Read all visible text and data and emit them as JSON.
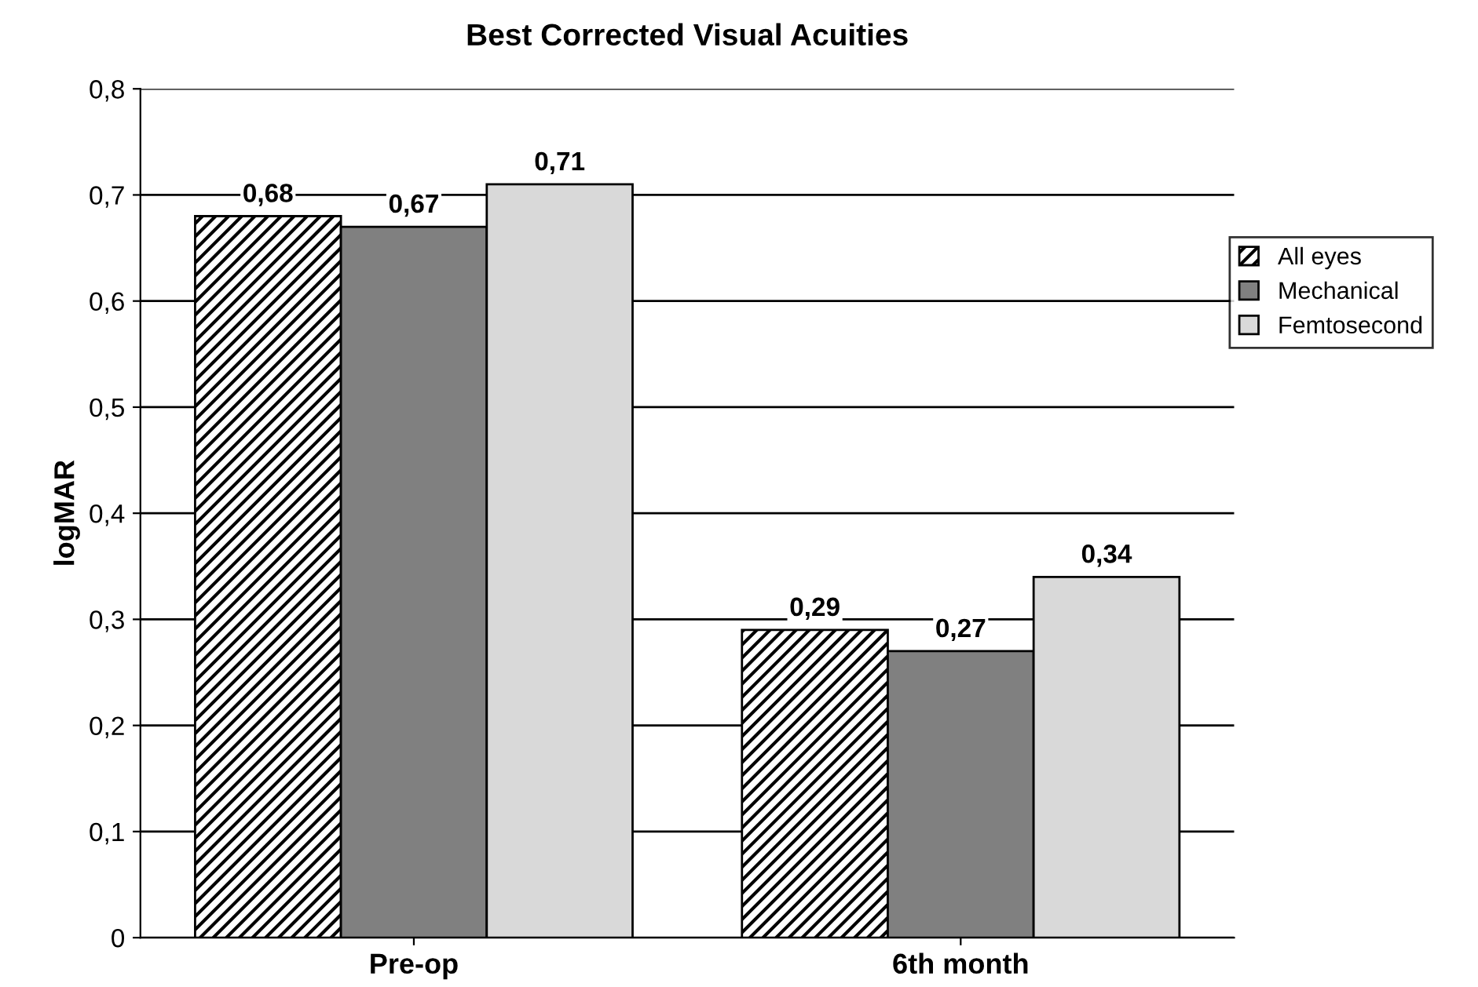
{
  "chart_data": {
    "type": "bar",
    "title": "Best Corrected Visual Acuities",
    "ylabel": "logMAR",
    "categories": [
      "Pre-op",
      "6th month"
    ],
    "series": [
      {
        "name": "All eyes",
        "color": "#000000",
        "values": [
          0.68,
          0.29
        ],
        "value_labels": [
          "0,68",
          "0,29"
        ]
      },
      {
        "name": "Mechanical",
        "color": "#808080",
        "values": [
          0.67,
          0.27
        ],
        "value_labels": [
          "0,67",
          "0,27"
        ]
      },
      {
        "name": "Femtosecond",
        "color": "#d9d9d9",
        "values": [
          0.71,
          0.34
        ],
        "value_labels": [
          "0,71",
          "0,34"
        ]
      }
    ],
    "ylim": [
      0,
      0.8
    ],
    "yticks": [
      0,
      {
        "value": 0.1,
        "label": "0,1"
      },
      {
        "value": 0.2,
        "label": "0,2"
      },
      {
        "value": 0.3,
        "label": "0,3"
      },
      {
        "value": 0.4,
        "label": "0,4"
      },
      {
        "value": 0.5,
        "label": "0,5"
      },
      {
        "value": 0.6,
        "label": "0,6"
      },
      {
        "value": 0.7,
        "label": "0,7"
      },
      {
        "value": 0.8,
        "label": "0,8"
      }
    ],
    "grid": "y",
    "legend": "right"
  }
}
